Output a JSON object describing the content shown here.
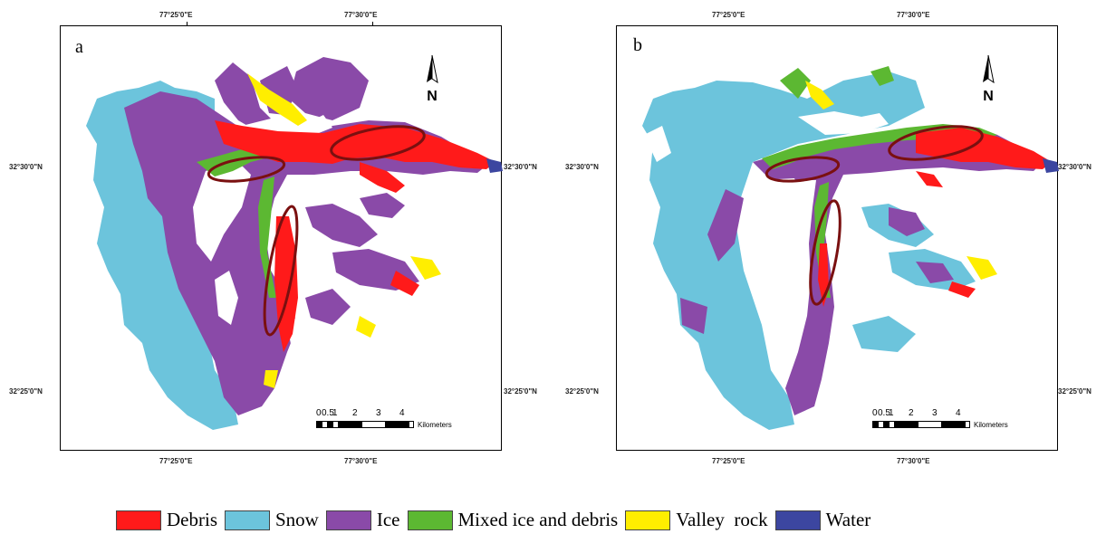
{
  "panels": [
    {
      "letter": "a",
      "top_labels": [
        "77°25'0\"E",
        "77°30'0\"E"
      ],
      "bottom_labels": [
        "77°25'0\"E",
        "77°30'0\"E"
      ],
      "left_labels": [
        "32°30'0\"N",
        "32°25'0\"N"
      ],
      "right_labels": [
        "32°30'0\"N",
        "32°25'0\"N"
      ],
      "scale": {
        "ticks": [
          "0",
          "0.5",
          "1",
          "2",
          "3",
          "4"
        ],
        "unit": "Kilometers"
      }
    },
    {
      "letter": "b",
      "top_labels": [
        "77°25'0\"E",
        "77°30'0\"E"
      ],
      "bottom_labels": [
        "77°25'0\"E",
        "77°30'0\"E"
      ],
      "left_labels": [
        "32°30'0\"N",
        "32°25'0\"N"
      ],
      "right_labels": [
        "32°30'0\"N",
        "32°25'0\"N"
      ],
      "scale": {
        "ticks": [
          "0",
          "0.5",
          "1",
          "2",
          "3",
          "4"
        ],
        "unit": "Kilometers"
      }
    }
  ],
  "legend": [
    {
      "label": "Debris",
      "color": "#ff1a1a"
    },
    {
      "label": "Snow",
      "color": "#6cc4dc"
    },
    {
      "label": "Ice",
      "color": "#8a4aa8"
    },
    {
      "label": "Mixed ice and debris",
      "color": "#5cb832"
    },
    {
      "label": "Valley  rock",
      "color": "#ffee00"
    },
    {
      "label": "Water",
      "color": "#3c46a0"
    }
  ],
  "colors": {
    "debris": "#ff1a1a",
    "snow": "#6cc4dc",
    "ice": "#8a4aa8",
    "mixed": "#5cb832",
    "rock": "#ffee00",
    "water": "#3c46a0",
    "ellipse": "#7a1010"
  },
  "icons": [
    "north-arrow-icon"
  ]
}
